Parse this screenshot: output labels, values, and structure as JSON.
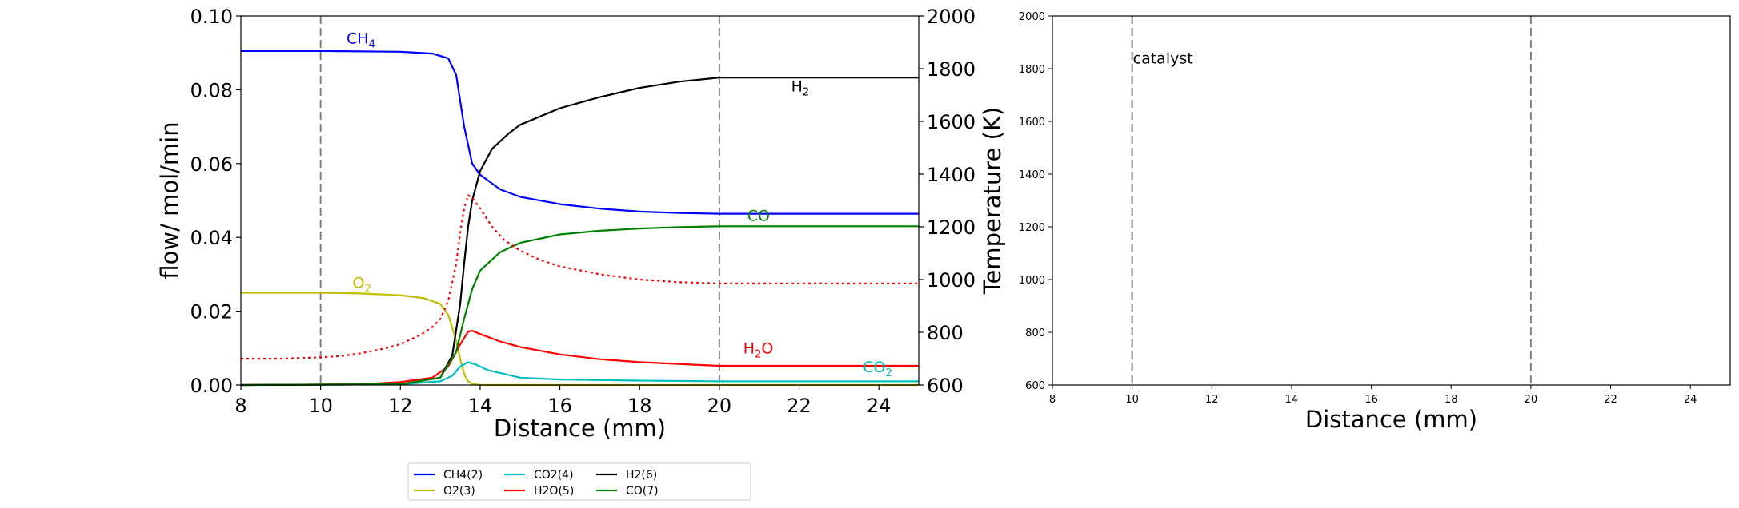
{
  "chart_data": [
    {
      "type": "line",
      "xlabel": "Distance (mm)",
      "ylabel": "flow/ mol/min",
      "y2label": "Temperature (K)",
      "xlim": [
        8,
        25
      ],
      "ylim": [
        0,
        0.1
      ],
      "y2lim": [
        600,
        2000
      ],
      "xticks": [
        "8",
        "10",
        "12",
        "14",
        "16",
        "18",
        "20",
        "22",
        "24"
      ],
      "yticks": [
        "0.00",
        "0.02",
        "0.04",
        "0.06",
        "0.08",
        "0.10"
      ],
      "y2ticks": [
        "600",
        "800",
        "1000",
        "1200",
        "1400",
        "1600",
        "1800",
        "2000"
      ],
      "vlines": [
        10,
        20
      ],
      "series": [
        {
          "name": "CH4(2)",
          "color": "#0000ff",
          "x": [
            8,
            10,
            12,
            12.8,
            13.2,
            13.4,
            13.6,
            13.8,
            14,
            14.5,
            15,
            16,
            17,
            18,
            19,
            20,
            25
          ],
          "y": [
            0.0905,
            0.0905,
            0.0903,
            0.0898,
            0.0885,
            0.084,
            0.07,
            0.06,
            0.057,
            0.053,
            0.051,
            0.049,
            0.0478,
            0.047,
            0.0466,
            0.0464,
            0.0464
          ]
        },
        {
          "name": "O2(3)",
          "color": "#bfbf00",
          "x": [
            8,
            10,
            11,
            12,
            12.6,
            13,
            13.2,
            13.4,
            13.5,
            13.6,
            13.7,
            13.8,
            14,
            25
          ],
          "y": [
            0.025,
            0.025,
            0.0248,
            0.0243,
            0.0235,
            0.022,
            0.019,
            0.012,
            0.007,
            0.003,
            0.001,
            0.0003,
            0,
            0
          ]
        },
        {
          "name": "CO2(4)",
          "color": "#00bfbf",
          "x": [
            8,
            12,
            13,
            13.3,
            13.5,
            13.7,
            13.9,
            14.2,
            14.6,
            15,
            16,
            18,
            20,
            25
          ],
          "y": [
            0,
            0.0002,
            0.001,
            0.0025,
            0.005,
            0.0062,
            0.0055,
            0.004,
            0.003,
            0.002,
            0.0015,
            0.0012,
            0.001,
            0.001
          ]
        },
        {
          "name": "H2O(5)",
          "color": "#ff0000",
          "x": [
            8,
            11,
            12,
            12.8,
            13.2,
            13.5,
            13.7,
            13.8,
            14,
            14.5,
            15,
            16,
            17,
            18,
            20,
            25
          ],
          "y": [
            0,
            0.0002,
            0.0008,
            0.002,
            0.005,
            0.011,
            0.0145,
            0.0147,
            0.0138,
            0.0118,
            0.0103,
            0.0083,
            0.007,
            0.0062,
            0.0052,
            0.0052
          ]
        },
        {
          "name": "H2(6)",
          "color": "#000000",
          "x": [
            8,
            12,
            13,
            13.3,
            13.5,
            13.6,
            13.7,
            13.8,
            14,
            14.3,
            14.7,
            15,
            16,
            17,
            18,
            19,
            20,
            25
          ],
          "y": [
            0,
            0.0002,
            0.002,
            0.008,
            0.022,
            0.033,
            0.043,
            0.05,
            0.058,
            0.064,
            0.068,
            0.0705,
            0.075,
            0.078,
            0.0805,
            0.0822,
            0.0833,
            0.0833
          ]
        },
        {
          "name": "CO(7)",
          "color": "#008000",
          "x": [
            8,
            12,
            13,
            13.4,
            13.6,
            13.8,
            14,
            14.5,
            15,
            16,
            17,
            18,
            19,
            20,
            25
          ],
          "y": [
            0,
            0.0002,
            0.002,
            0.009,
            0.018,
            0.026,
            0.031,
            0.036,
            0.0385,
            0.0408,
            0.0418,
            0.0424,
            0.0428,
            0.043,
            0.043
          ]
        },
        {
          "name": "T",
          "color": "#ff0000",
          "dashed": true,
          "axis": "y2",
          "x": [
            8,
            9,
            10,
            10.5,
            11,
            11.5,
            12,
            12.5,
            12.8,
            13,
            13.2,
            13.4,
            13.5,
            13.6,
            13.7,
            13.8,
            14,
            14.3,
            14.6,
            15,
            15.5,
            16,
            17,
            18,
            19,
            20,
            25
          ],
          "y": [
            700,
            700,
            705,
            710,
            720,
            735,
            755,
            790,
            820,
            850,
            920,
            1060,
            1180,
            1270,
            1320,
            1310,
            1270,
            1200,
            1150,
            1110,
            1075,
            1050,
            1020,
            1000,
            990,
            985,
            985
          ]
        }
      ],
      "annotations": [
        {
          "label": "CH",
          "sub": "4",
          "x": 10.65,
          "y": 0.0925,
          "color": "#0000ff"
        },
        {
          "label": "H",
          "sub": "2",
          "x": 21.8,
          "y": 0.0795,
          "color": "#000000"
        },
        {
          "label": "CO",
          "sub": "",
          "x": 20.7,
          "y": 0.0445,
          "color": "#008000"
        },
        {
          "label": "O",
          "sub": "2",
          "x": 10.8,
          "y": 0.0263,
          "color": "#bfbf00"
        },
        {
          "label": "H",
          "sub": "2",
          "tail": "O",
          "x": 20.6,
          "y": 0.0085,
          "color": "#ff0000"
        },
        {
          "label": "CO",
          "sub": "2",
          "x": 23.6,
          "y": 0.0035,
          "color": "#00bfbf"
        }
      ]
    },
    {
      "type": "line",
      "xlabel": "Distance (mm)",
      "xlim": [
        8,
        25
      ],
      "ylim": [
        600,
        2000
      ],
      "xticks": [
        "8",
        "10",
        "12",
        "14",
        "16",
        "18",
        "20",
        "22",
        "24"
      ],
      "yticks": [
        "600",
        "800",
        "1000",
        "1200",
        "1400",
        "1600",
        "1800",
        "2000"
      ],
      "vlines": [
        10,
        20
      ],
      "annotations": [
        {
          "label": "catalyst",
          "x": 10.0,
          "y": 1820
        }
      ],
      "series": []
    }
  ],
  "legend": {
    "placement": "bottom-center",
    "entries": [
      {
        "label": "CH4(2)",
        "color": "#0000ff"
      },
      {
        "label": "O2(3)",
        "color": "#bfbf00"
      },
      {
        "label": "CO2(4)",
        "color": "#00bfbf"
      },
      {
        "label": "H2O(5)",
        "color": "#ff0000"
      },
      {
        "label": "H2(6)",
        "color": "#000000"
      },
      {
        "label": "CO(7)",
        "color": "#008000"
      }
    ]
  }
}
